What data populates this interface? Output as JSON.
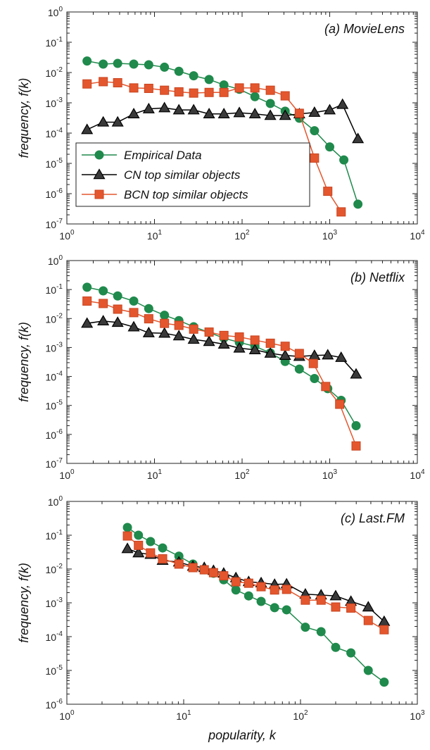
{
  "colors": {
    "empirical": "#1f8a4c",
    "cn": "#000000",
    "cn_fill": "#3a3a3a",
    "bcn": "#e4572e",
    "bcn_edge": "#c9431f"
  },
  "chart_data": [
    {
      "type": "line",
      "title": "(a) MovieLens",
      "xlabel": "",
      "ylabel": "frequency, f(k)",
      "xscale": "log",
      "yscale": "log",
      "xlim": [
        1,
        10000
      ],
      "ylim": [
        1e-07,
        1
      ],
      "x_ticks": [
        1,
        10,
        100,
        1000,
        10000
      ],
      "y_ticks": [
        1e-07,
        1e-06,
        1e-05,
        0.0001,
        0.001,
        0.01,
        0.1,
        1
      ],
      "x_tick_labels": [
        {
          "base": "10",
          "exp": "0"
        },
        {
          "base": "10",
          "exp": "1"
        },
        {
          "base": "10",
          "exp": "2"
        },
        {
          "base": "10",
          "exp": "3"
        },
        {
          "base": "10",
          "exp": "4"
        }
      ],
      "y_tick_labels": [
        {
          "base": "10",
          "exp": "-7"
        },
        {
          "base": "10",
          "exp": "-6"
        },
        {
          "base": "10",
          "exp": "-5"
        },
        {
          "base": "10",
          "exp": "-4"
        },
        {
          "base": "10",
          "exp": "-3"
        },
        {
          "base": "10",
          "exp": "-2"
        },
        {
          "base": "10",
          "exp": "-1"
        },
        {
          "base": "10",
          "exp": "0"
        }
      ],
      "grid": false,
      "legend": {
        "placement": "lower-left",
        "entries": [
          "Empirical Data",
          "CN top similar objects",
          "BCN top similar objects"
        ]
      },
      "series": [
        {
          "name": "Empirical Data",
          "marker": "circle",
          "x": [
            1.7,
            2.6,
            3.8,
            5.8,
            8.6,
            13,
            19,
            28,
            42,
            62,
            93,
            140,
            210,
            310,
            450,
            670,
            1000,
            1450,
            2100
          ],
          "y": [
            0.024,
            0.019,
            0.02,
            0.019,
            0.018,
            0.015,
            0.011,
            0.0078,
            0.0059,
            0.0039,
            0.0028,
            0.0016,
            0.00095,
            0.00053,
            0.00031,
            0.00012,
            3.5e-05,
            1.3e-05,
            4.5e-07
          ]
        },
        {
          "name": "CN top similar objects",
          "marker": "triangle",
          "x": [
            1.7,
            2.6,
            3.8,
            5.8,
            8.6,
            13,
            19,
            28,
            42,
            62,
            93,
            140,
            210,
            310,
            450,
            670,
            1000,
            1400,
            2100
          ],
          "y": [
            0.00013,
            0.00023,
            0.00023,
            0.00043,
            0.00063,
            0.00068,
            0.00058,
            0.00058,
            0.00043,
            0.00043,
            0.00047,
            0.00043,
            0.00038,
            0.00038,
            0.00043,
            0.00048,
            0.00058,
            0.00088,
            6.5e-05
          ]
        },
        {
          "name": "BCN top similar objects",
          "marker": "square",
          "x": [
            1.7,
            2.6,
            3.8,
            5.8,
            8.6,
            13,
            19,
            28,
            42,
            62,
            93,
            140,
            210,
            310,
            450,
            670,
            950,
            1350
          ],
          "y": [
            0.0042,
            0.005,
            0.0046,
            0.0031,
            0.003,
            0.0026,
            0.0023,
            0.0021,
            0.0022,
            0.0022,
            0.0031,
            0.0031,
            0.0026,
            0.0017,
            0.00045,
            1.5e-05,
            1.2e-06,
            2.5e-07
          ]
        }
      ]
    },
    {
      "type": "line",
      "title": "(b) Netflix",
      "xlabel": "",
      "ylabel": "frequency, f(k)",
      "xscale": "log",
      "yscale": "log",
      "xlim": [
        1,
        10000
      ],
      "ylim": [
        1e-07,
        1
      ],
      "x_ticks": [
        1,
        10,
        100,
        1000,
        10000
      ],
      "y_ticks": [
        1e-07,
        1e-06,
        1e-05,
        0.0001,
        0.001,
        0.01,
        0.1,
        1
      ],
      "x_tick_labels": [
        {
          "base": "10",
          "exp": "0"
        },
        {
          "base": "10",
          "exp": "1"
        },
        {
          "base": "10",
          "exp": "2"
        },
        {
          "base": "10",
          "exp": "3"
        },
        {
          "base": "10",
          "exp": "4"
        }
      ],
      "y_tick_labels": [
        {
          "base": "10",
          "exp": "-7"
        },
        {
          "base": "10",
          "exp": "-6"
        },
        {
          "base": "10",
          "exp": "-5"
        },
        {
          "base": "10",
          "exp": "-4"
        },
        {
          "base": "10",
          "exp": "-3"
        },
        {
          "base": "10",
          "exp": "-2"
        },
        {
          "base": "10",
          "exp": "-1"
        },
        {
          "base": "10",
          "exp": "0"
        }
      ],
      "grid": false,
      "series": [
        {
          "name": "Empirical Data",
          "marker": "circle",
          "x": [
            1.7,
            2.6,
            3.8,
            5.8,
            8.6,
            13,
            19,
            28,
            42,
            62,
            93,
            140,
            210,
            310,
            450,
            670,
            950,
            1350,
            2000
          ],
          "y": [
            0.12,
            0.09,
            0.06,
            0.04,
            0.022,
            0.013,
            0.0085,
            0.0052,
            0.0033,
            0.0021,
            0.0015,
            0.0011,
            0.00065,
            0.00033,
            0.00018,
            8.5e-05,
            3.8e-05,
            1.5e-05,
            2e-06
          ]
        },
        {
          "name": "CN top similar objects",
          "marker": "triangle",
          "x": [
            1.7,
            2.6,
            3.8,
            5.8,
            8.6,
            13,
            19,
            28,
            42,
            62,
            93,
            140,
            210,
            310,
            450,
            670,
            950,
            1350,
            2000
          ],
          "y": [
            0.0068,
            0.0082,
            0.0073,
            0.0051,
            0.0032,
            0.0031,
            0.0025,
            0.0019,
            0.0016,
            0.0013,
            0.00095,
            0.00083,
            0.00063,
            0.00053,
            0.00049,
            0.00053,
            0.00055,
            0.00045,
            0.00012
          ]
        },
        {
          "name": "BCN top similar objects",
          "marker": "square",
          "x": [
            1.7,
            2.6,
            3.8,
            5.8,
            8.6,
            13,
            19,
            28,
            42,
            62,
            93,
            140,
            210,
            310,
            450,
            650,
            900,
            1300,
            2000
          ],
          "y": [
            0.04,
            0.033,
            0.021,
            0.016,
            0.0098,
            0.0068,
            0.0058,
            0.0043,
            0.0034,
            0.0026,
            0.0023,
            0.0018,
            0.0014,
            0.0011,
            0.00062,
            0.00028,
            4.5e-05,
            1.1e-05,
            4e-07
          ]
        }
      ]
    },
    {
      "type": "line",
      "title": "(c) Last.FM",
      "xlabel": "popularity, k",
      "ylabel": "frequency, f(k)",
      "xscale": "log",
      "yscale": "log",
      "xlim": [
        1,
        1000
      ],
      "ylim": [
        1e-06,
        1
      ],
      "x_ticks": [
        1,
        10,
        100,
        1000
      ],
      "y_ticks": [
        1e-06,
        1e-05,
        0.0001,
        0.001,
        0.01,
        0.1,
        1
      ],
      "x_tick_labels": [
        {
          "base": "10",
          "exp": "0"
        },
        {
          "base": "10",
          "exp": "1"
        },
        {
          "base": "10",
          "exp": "2"
        },
        {
          "base": "10",
          "exp": "3"
        }
      ],
      "y_tick_labels": [
        {
          "base": "10",
          "exp": "-6"
        },
        {
          "base": "10",
          "exp": "-5"
        },
        {
          "base": "10",
          "exp": "-4"
        },
        {
          "base": "10",
          "exp": "-3"
        },
        {
          "base": "10",
          "exp": "-2"
        },
        {
          "base": "10",
          "exp": "-1"
        },
        {
          "base": "10",
          "exp": "0"
        }
      ],
      "grid": false,
      "series": [
        {
          "name": "Empirical Data",
          "marker": "circle",
          "x": [
            3.3,
            4.1,
            5.2,
            6.6,
            9.1,
            12,
            15,
            18,
            22,
            28,
            36,
            46,
            60,
            76,
            110,
            150,
            200,
            270,
            380,
            520
          ],
          "y": [
            0.17,
            0.1,
            0.065,
            0.042,
            0.024,
            0.014,
            0.0095,
            0.0075,
            0.0048,
            0.0024,
            0.0016,
            0.0011,
            0.00072,
            0.00062,
            0.00019,
            0.00014,
            4.8e-05,
            3.3e-05,
            1e-05,
            4.5e-06
          ]
        },
        {
          "name": "CN top similar objects",
          "marker": "triangle",
          "x": [
            3.3,
            4.1,
            5.2,
            6.6,
            9.1,
            12,
            15,
            18,
            22,
            28,
            36,
            46,
            60,
            76,
            110,
            150,
            200,
            270,
            380,
            520
          ],
          "y": [
            0.04,
            0.03,
            0.027,
            0.018,
            0.016,
            0.012,
            0.011,
            0.009,
            0.0075,
            0.0055,
            0.0042,
            0.0039,
            0.0035,
            0.0036,
            0.0018,
            0.0017,
            0.0016,
            0.0011,
            0.00075,
            0.00028
          ]
        },
        {
          "name": "BCN top similar objects",
          "marker": "square",
          "x": [
            3.3,
            4.1,
            5.2,
            6.6,
            9.1,
            12,
            15,
            18,
            22,
            28,
            36,
            46,
            60,
            76,
            110,
            150,
            200,
            270,
            380,
            520
          ],
          "y": [
            0.095,
            0.05,
            0.03,
            0.02,
            0.014,
            0.011,
            0.0095,
            0.0078,
            0.0063,
            0.0042,
            0.0038,
            0.003,
            0.0024,
            0.0025,
            0.0012,
            0.0012,
            0.00075,
            0.0007,
            0.0003,
            0.00016
          ]
        }
      ]
    }
  ]
}
